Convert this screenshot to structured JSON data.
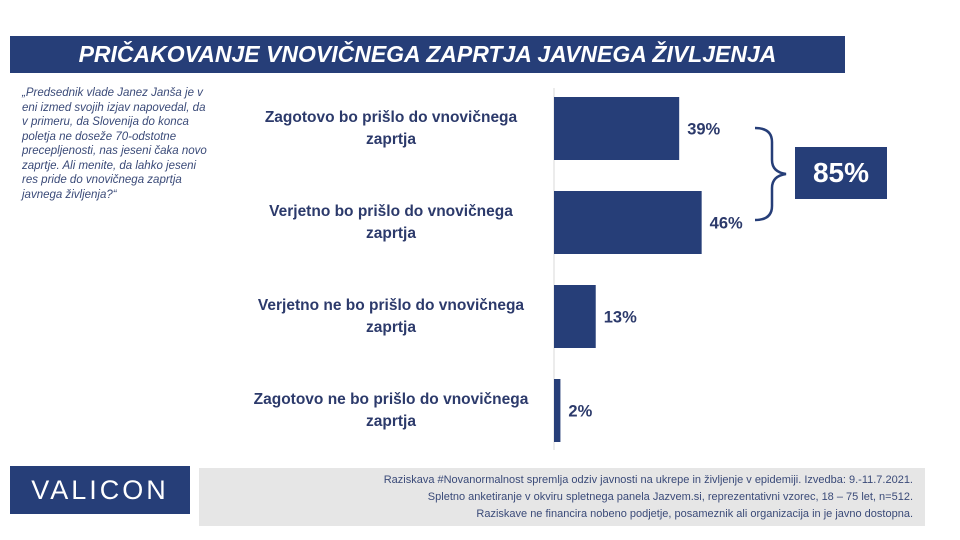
{
  "title": "PRIČAKOVANJE VNOVIČNEGA ZAPRTJA JAVNEGA ŽIVLJENJA",
  "question": "„Predsednik vlade Janez Janša je v eni izmed svojih izjav napovedal, da v primeru, da Slovenija do konca poletja ne doseže 70-odstotne precepljenosti, nas jeseni čaka novo zaprtje. Ali menite, da lahko jeseni res pride do vnovičnega zaprtja javnega življenja?“",
  "chart_data": {
    "type": "bar",
    "orientation": "horizontal",
    "categories": [
      "Zagotovo bo prišlo do vnovičnega zaprtja",
      "Verjetno bo prišlo do vnovičnega zaprtja",
      "Verjetno ne bo prišlo do vnovičnega zaprtja",
      "Zagotovo ne bo prišlo do vnovičnega zaprtja"
    ],
    "values": [
      39,
      46,
      13,
      2
    ],
    "value_labels": [
      "39%",
      "46%",
      "13%",
      "2%"
    ],
    "unit": "%",
    "bar_color": "#263e78",
    "grid": false,
    "bracket_total": {
      "label": "85%",
      "covers": [
        0,
        1
      ]
    }
  },
  "logo": "VALICON",
  "footer": {
    "line1": "Raziskava #Novanormalnost spremlja odziv javnosti na ukrepe in življenje v epidemiji. Izvedba: 9.-11.7.2021.",
    "line2": "Spletno anketiranje v okviru spletnega panela Jazvem.si, reprezentativni vzorec, 18 – 75 let, n=512.",
    "line3": "Raziskave ne financira nobeno podjetje, posameznik ali organizacija in je javno dostopna."
  }
}
